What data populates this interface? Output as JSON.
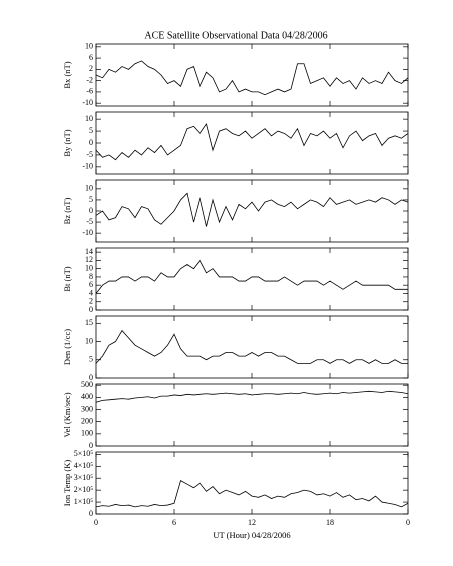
{
  "chart_data": [
    {
      "type": "line",
      "title": "ACE Satellite Observational Data   04/28/2006",
      "y_label": "Bx (nT)",
      "color": "#000000",
      "x": [
        0,
        0.5,
        1,
        1.5,
        2,
        2.5,
        3,
        3.5,
        4,
        4.5,
        5,
        5.5,
        6,
        6.5,
        7,
        7.5,
        8,
        8.5,
        9,
        9.5,
        10,
        10.5,
        11,
        11.5,
        12,
        12.5,
        13,
        13.5,
        14,
        14.5,
        15,
        15.5,
        16,
        16.5,
        17,
        17.5,
        18,
        18.5,
        19,
        19.5,
        20,
        20.5,
        21,
        21.5,
        22,
        22.5,
        23,
        23.5,
        24
      ],
      "values": [
        0,
        -1,
        2,
        1,
        3,
        2,
        4,
        5,
        3,
        2,
        0,
        -3,
        -2,
        -4,
        2,
        3,
        -4,
        1,
        -1,
        -6,
        -5,
        -2,
        -6,
        -5,
        -6,
        -6,
        -7,
        -6,
        -5,
        -6,
        -5,
        4,
        4,
        -3,
        -2,
        -1,
        -4,
        -1,
        -3,
        -2,
        -5,
        -1,
        -3,
        -2,
        -3,
        1,
        -2,
        -3,
        -1
      ],
      "xlim": [
        0,
        24
      ],
      "xticks": [
        0,
        6,
        12,
        18,
        {
          "value": 24,
          "label": "0"
        }
      ],
      "ylim": [
        -11,
        11
      ],
      "yticks": [
        -10,
        -6,
        -2,
        2,
        6,
        10
      ]
    },
    {
      "type": "line",
      "y_label": "By (nT)",
      "color": "#000000",
      "x": [
        0,
        0.5,
        1,
        1.5,
        2,
        2.5,
        3,
        3.5,
        4,
        4.5,
        5,
        5.5,
        6,
        6.5,
        7,
        7.5,
        8,
        8.5,
        9,
        9.5,
        10,
        10.5,
        11,
        11.5,
        12,
        12.5,
        13,
        13.5,
        14,
        14.5,
        15,
        15.5,
        16,
        16.5,
        17,
        17.5,
        18,
        18.5,
        19,
        19.5,
        20,
        20.5,
        21,
        21.5,
        22,
        22.5,
        23,
        23.5,
        24
      ],
      "values": [
        -3,
        -6,
        -5,
        -7,
        -4,
        -6,
        -3,
        -5,
        -2,
        -4,
        -1,
        -5,
        -3,
        -1,
        6,
        7,
        4,
        8,
        -3,
        5,
        6,
        4,
        3,
        5,
        2,
        4,
        6,
        3,
        5,
        4,
        2,
        6,
        -1,
        4,
        3,
        5,
        2,
        4,
        -2,
        3,
        5,
        1,
        3,
        4,
        -1,
        2,
        3,
        2,
        4
      ],
      "xlim": [
        0,
        24
      ],
      "xticks": [
        0,
        6,
        12,
        18,
        {
          "value": 24,
          "label": "0"
        }
      ],
      "ylim": [
        -13,
        13
      ],
      "yticks": [
        -10,
        -5,
        0,
        5,
        10
      ]
    },
    {
      "type": "line",
      "y_label": "Bz (nT)",
      "color": "#000000",
      "x": [
        0,
        0.5,
        1,
        1.5,
        2,
        2.5,
        3,
        3.5,
        4,
        4.5,
        5,
        5.5,
        6,
        6.5,
        7,
        7.5,
        8,
        8.5,
        9,
        9.5,
        10,
        10.5,
        11,
        11.5,
        12,
        12.5,
        13,
        13.5,
        14,
        14.5,
        15,
        15.5,
        16,
        16.5,
        17,
        17.5,
        18,
        18.5,
        19,
        19.5,
        20,
        20.5,
        21,
        21.5,
        22,
        22.5,
        23,
        23.5,
        24
      ],
      "values": [
        -2,
        0,
        -4,
        -3,
        2,
        1,
        -3,
        2,
        1,
        -4,
        -6,
        -3,
        0,
        5,
        8,
        -5,
        6,
        -7,
        5,
        -5,
        2,
        -4,
        3,
        1,
        4,
        0,
        4,
        5,
        3,
        2,
        4,
        1,
        3,
        5,
        4,
        2,
        6,
        3,
        4,
        5,
        3,
        4,
        5,
        4,
        6,
        5,
        3,
        5,
        4
      ],
      "xlim": [
        0,
        24
      ],
      "xticks": [
        0,
        6,
        12,
        18,
        {
          "value": 24,
          "label": "0"
        }
      ],
      "ylim": [
        -14,
        14
      ],
      "yticks": [
        -10,
        -5,
        0,
        5,
        10
      ]
    },
    {
      "type": "line",
      "y_label": "Bt (nT)",
      "color": "#000000",
      "x": [
        0,
        0.5,
        1,
        1.5,
        2,
        2.5,
        3,
        3.5,
        4,
        4.5,
        5,
        5.5,
        6,
        6.5,
        7,
        7.5,
        8,
        8.5,
        9,
        9.5,
        10,
        10.5,
        11,
        11.5,
        12,
        12.5,
        13,
        13.5,
        14,
        14.5,
        15,
        15.5,
        16,
        16.5,
        17,
        17.5,
        18,
        18.5,
        19,
        19.5,
        20,
        20.5,
        21,
        21.5,
        22,
        22.5,
        23,
        23.5,
        24
      ],
      "values": [
        4,
        6,
        7,
        7,
        8,
        8,
        7,
        8,
        8,
        7,
        9,
        8,
        8,
        10,
        11,
        10,
        12,
        9,
        10,
        8,
        8,
        8,
        7,
        7,
        8,
        8,
        7,
        7,
        7,
        8,
        7,
        6,
        7,
        7,
        7,
        6,
        7,
        6,
        5,
        6,
        7,
        6,
        6,
        6,
        6,
        6,
        5,
        5,
        5
      ],
      "xlim": [
        0,
        24
      ],
      "xticks": [
        0,
        6,
        12,
        18,
        {
          "value": 24,
          "label": "0"
        }
      ],
      "ylim": [
        0,
        15
      ],
      "yticks": [
        0,
        2,
        4,
        6,
        8,
        10,
        12,
        14
      ]
    },
    {
      "type": "line",
      "y_label": "Den (1/cc)",
      "color": "#000000",
      "x": [
        0,
        0.5,
        1,
        1.5,
        2,
        2.5,
        3,
        3.5,
        4,
        4.5,
        5,
        5.5,
        6,
        6.5,
        7,
        7.5,
        8,
        8.5,
        9,
        9.5,
        10,
        10.5,
        11,
        11.5,
        12,
        12.5,
        13,
        13.5,
        14,
        14.5,
        15,
        15.5,
        16,
        16.5,
        17,
        17.5,
        18,
        18.5,
        19,
        19.5,
        20,
        20.5,
        21,
        21.5,
        22,
        22.5,
        23,
        23.5,
        24
      ],
      "values": [
        4,
        6,
        9,
        10,
        13,
        11,
        9,
        8,
        7,
        6,
        7,
        9,
        12,
        8,
        6,
        6,
        6,
        5,
        6,
        6,
        7,
        7,
        6,
        6,
        7,
        6,
        7,
        7,
        6,
        6,
        5,
        4,
        4,
        4,
        5,
        5,
        4,
        5,
        5,
        4,
        5,
        5,
        4,
        5,
        4,
        4,
        5,
        4,
        4
      ],
      "xlim": [
        0,
        24
      ],
      "xticks": [
        0,
        6,
        12,
        18,
        {
          "value": 24,
          "label": "0"
        }
      ],
      "ylim": [
        0,
        17
      ],
      "yticks": [
        0,
        5,
        10,
        15
      ]
    },
    {
      "type": "line",
      "y_label": "Vel (Km/sec)",
      "color": "#000000",
      "x": [
        0,
        0.5,
        1,
        1.5,
        2,
        2.5,
        3,
        3.5,
        4,
        4.5,
        5,
        5.5,
        6,
        6.5,
        7,
        7.5,
        8,
        8.5,
        9,
        9.5,
        10,
        10.5,
        11,
        11.5,
        12,
        12.5,
        13,
        13.5,
        14,
        14.5,
        15,
        15.5,
        16,
        16.5,
        17,
        17.5,
        18,
        18.5,
        19,
        19.5,
        20,
        20.5,
        21,
        21.5,
        22,
        22.5,
        23,
        23.5,
        24
      ],
      "values": [
        360,
        375,
        380,
        385,
        390,
        385,
        395,
        400,
        405,
        395,
        410,
        410,
        420,
        415,
        425,
        420,
        425,
        430,
        425,
        430,
        435,
        430,
        425,
        430,
        420,
        425,
        430,
        430,
        425,
        430,
        435,
        430,
        440,
        430,
        425,
        430,
        435,
        430,
        440,
        435,
        440,
        445,
        450,
        445,
        440,
        450,
        445,
        440,
        430
      ],
      "xlim": [
        0,
        24
      ],
      "xticks": [
        0,
        6,
        12,
        18,
        {
          "value": 24,
          "label": "0"
        }
      ],
      "ylim": [
        0,
        510
      ],
      "yticks": [
        0,
        100,
        200,
        300,
        400,
        500
      ]
    },
    {
      "type": "line",
      "y_label": "Ion Temp (K)",
      "x_label": "UT (Hour)   04/28/2006",
      "color": "#000000",
      "x": [
        0,
        0.5,
        1,
        1.5,
        2,
        2.5,
        3,
        3.5,
        4,
        4.5,
        5,
        5.5,
        6,
        6.5,
        7,
        7.5,
        8,
        8.5,
        9,
        9.5,
        10,
        10.5,
        11,
        11.5,
        12,
        12.5,
        13,
        13.5,
        14,
        14.5,
        15,
        15.5,
        16,
        16.5,
        17,
        17.5,
        18,
        18.5,
        19,
        19.5,
        20,
        20.5,
        21,
        21.5,
        22,
        22.5,
        23,
        23.5,
        24
      ],
      "values": [
        60000,
        70000,
        65000,
        80000,
        70000,
        75000,
        60000,
        70000,
        65000,
        80000,
        70000,
        75000,
        90000,
        280000,
        250000,
        220000,
        260000,
        190000,
        230000,
        170000,
        200000,
        180000,
        160000,
        190000,
        150000,
        140000,
        160000,
        130000,
        150000,
        140000,
        170000,
        180000,
        200000,
        190000,
        160000,
        170000,
        150000,
        180000,
        140000,
        160000,
        120000,
        130000,
        110000,
        150000,
        100000,
        90000,
        80000,
        60000,
        90000
      ],
      "xlim": [
        0,
        24
      ],
      "xticks": [
        0,
        6,
        12,
        18,
        {
          "value": 24,
          "label": "0"
        }
      ],
      "ylim": [
        0,
        520000
      ],
      "yticks": [
        0,
        {
          "value": 100000,
          "label": "1×10⁵"
        },
        {
          "value": 200000,
          "label": "2×10⁵"
        },
        {
          "value": 300000,
          "label": "3×10⁵"
        },
        {
          "value": 400000,
          "label": "4×10⁵"
        },
        {
          "value": 500000,
          "label": "5×10⁵"
        }
      ]
    }
  ]
}
